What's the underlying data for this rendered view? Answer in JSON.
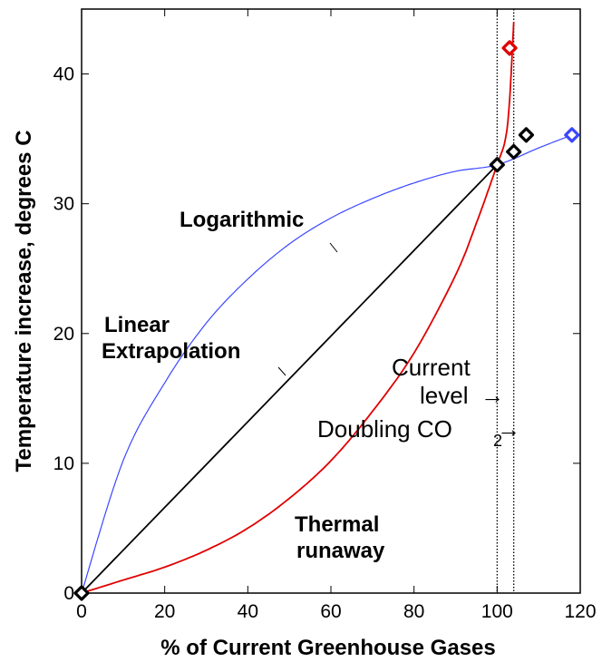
{
  "chart_data": {
    "type": "line",
    "xlabel": "% of Current Greenhouse Gases",
    "ylabel": "Temperature increase, degrees C",
    "xlim": [
      0,
      120
    ],
    "ylim": [
      0,
      45
    ],
    "xticks": [
      0,
      20,
      40,
      60,
      80,
      100,
      120
    ],
    "yticks": [
      0,
      10,
      20,
      30,
      40
    ],
    "series": [
      {
        "name": "Logarithmic",
        "color": "#3b47ff",
        "curve": "logarithmic",
        "x": [
          0,
          10,
          20,
          30,
          40,
          50,
          60,
          70,
          80,
          90,
          100,
          110,
          118
        ],
        "y": [
          0,
          10.2,
          16.2,
          20.8,
          24.2,
          26.9,
          28.9,
          30.4,
          31.6,
          32.5,
          33.0,
          34.3,
          35.3
        ]
      },
      {
        "name": "Linear Extrapolation",
        "color": "#000000",
        "curve": "linear",
        "x": [
          0,
          100
        ],
        "y": [
          0,
          33.0
        ]
      },
      {
        "name": "Thermal runaway",
        "color": "#e00000",
        "curve": "exponential",
        "x": [
          0,
          10,
          20,
          30,
          40,
          50,
          60,
          70,
          80,
          90,
          95,
          100,
          102,
          103,
          104
        ],
        "y": [
          0,
          1.0,
          2.0,
          3.3,
          5.0,
          7.3,
          10.2,
          14.0,
          18.5,
          24.5,
          28.5,
          33.0,
          35.0,
          38.0,
          44.0
        ]
      }
    ],
    "markers": [
      {
        "x": 0,
        "y": 0,
        "color": "#000000"
      },
      {
        "x": 100,
        "y": 33.0,
        "color": "#000000"
      },
      {
        "x": 104,
        "y": 34.0,
        "color": "#000000"
      },
      {
        "x": 107,
        "y": 35.3,
        "color": "#000000"
      },
      {
        "x": 103,
        "y": 42.0,
        "color": "#e00000"
      },
      {
        "x": 118,
        "y": 35.3,
        "color": "#3b47ff"
      }
    ],
    "vlines": [
      {
        "x": 100,
        "label": "Current level"
      },
      {
        "x": 104,
        "label": "Doubling CO2"
      }
    ],
    "annotations": {
      "logarithmic": "Logarithmic",
      "linear_1": "Linear",
      "linear_2": "Extrapolation",
      "thermal_1": "Thermal",
      "thermal_2": "runaway",
      "current_1": "Current",
      "current_2": "level",
      "doubling": "Doubling CO",
      "doubling_sub": "2",
      "arrow": "→"
    }
  }
}
